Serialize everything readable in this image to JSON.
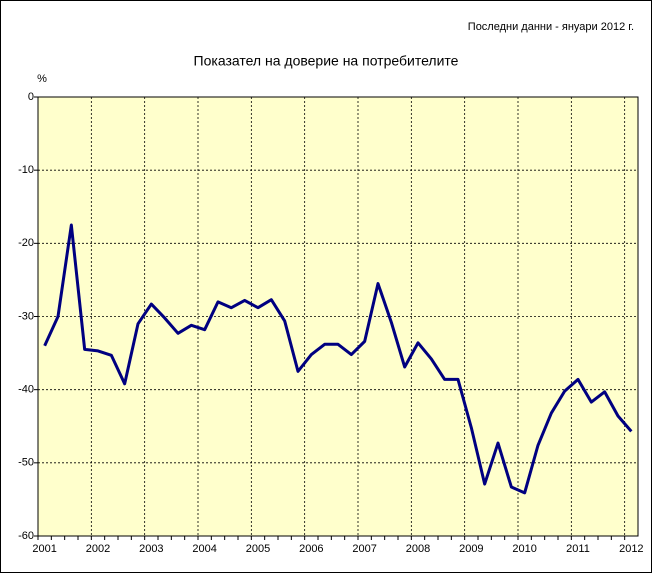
{
  "chart_data": {
    "type": "line",
    "title": "Показател  на доверие на потребителите",
    "subtitle": "Последни данни - януари 2012 г.",
    "y_label": "%",
    "categories": [
      "2001",
      null,
      null,
      null,
      "2002",
      null,
      null,
      null,
      "2003",
      null,
      null,
      null,
      "2004",
      null,
      null,
      null,
      "2005",
      null,
      null,
      null,
      "2006",
      null,
      null,
      null,
      "2007",
      null,
      null,
      null,
      "2008",
      null,
      null,
      null,
      "2009",
      null,
      null,
      null,
      "2010",
      null,
      null,
      null,
      "2011",
      null,
      null,
      null,
      "2012"
    ],
    "series": [
      {
        "name": "Показател на доверие на потребителите",
        "color": "#000080",
        "values": [
          -34,
          -30,
          -17.5,
          -34.5,
          -34.7,
          -35.3,
          -39.2,
          -31,
          -28.3,
          -30.2,
          -32.3,
          -31.2,
          -31.8,
          -28,
          -28.8,
          -27.8,
          -28.8,
          -27.7,
          -30.6,
          -37.5,
          -35.2,
          -33.8,
          -33.8,
          -35.2,
          -33.4,
          -25.5,
          -30.8,
          -36.9,
          -33.6,
          -35.8,
          -38.6,
          -38.6,
          -45.2,
          -52.9,
          -47.3,
          -53.3,
          -54.1,
          -47.6,
          -43.2,
          -40.2,
          -38.6,
          -41.7,
          -40.3,
          -43.6,
          -45.7
        ]
      }
    ],
    "ylim": [
      -60,
      0
    ],
    "yticks": [
      0,
      -10,
      -20,
      -30,
      -40,
      -50,
      -60
    ],
    "grid": true,
    "background": "#ffffcc"
  }
}
